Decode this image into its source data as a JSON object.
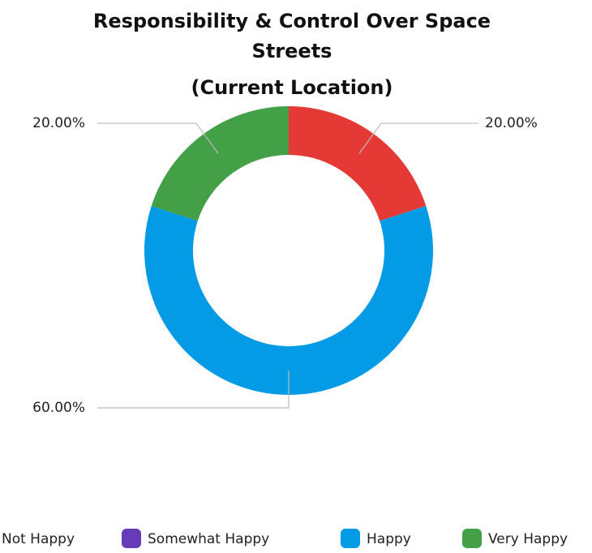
{
  "chart_data": {
    "type": "donut",
    "title": "Responsibility & Control Over Space Streets",
    "subtitle": "(Current Location)",
    "categories": [
      "Not Happy",
      "Somewhat Happy",
      "Happy",
      "Very Happy"
    ],
    "values": [
      20,
      0,
      60,
      20
    ],
    "value_labels": [
      "20.00%",
      null,
      "60.00%",
      "20.00%"
    ],
    "colors": [
      "#e53935",
      "#673ab7",
      "#039be5",
      "#43a047"
    ],
    "legend": "bottom"
  }
}
